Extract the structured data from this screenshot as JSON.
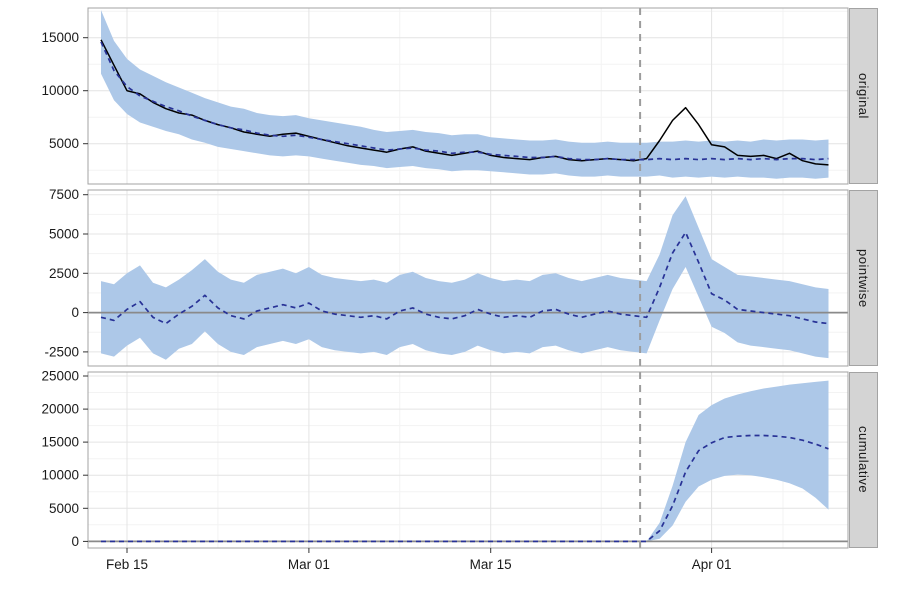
{
  "colors": {
    "band": "#ADC8E8",
    "prediction": "#283296",
    "actual": "#000000",
    "zero_line": "#8A8A8A",
    "vline": "#9C9C9C",
    "grid_major": "#E4E4E4",
    "grid_minor": "#F3F3F3",
    "panel_border": "#A3A3A3",
    "strip_bg": "#D4D4D4",
    "axis_text": "#1A1A1A"
  },
  "chart_data": {
    "type": "line",
    "subtype": "causal-impact-facets",
    "x_domain": [
      -1,
      57.5
    ],
    "x_ticks": [
      {
        "i": 2,
        "label": "Feb 15"
      },
      {
        "i": 16,
        "label": "Mar 01"
      },
      {
        "i": 30,
        "label": "Mar 15"
      },
      {
        "i": 47,
        "label": "Apr 01"
      }
    ],
    "x_minor": [
      9,
      23,
      38.5,
      52.5
    ],
    "intervention_x": 41.5,
    "panels": [
      {
        "name": "original",
        "ylim": [
          1200,
          17800
        ],
        "yticks": [
          5000,
          10000,
          15000
        ],
        "zero_line": false,
        "series": [
          {
            "name": "observed",
            "style": "solid-black",
            "values": [
              14800,
              12400,
              10000,
              9700,
              8900,
              8300,
              7900,
              7700,
              7200,
              6800,
              6500,
              6100,
              5900,
              5700,
              5900,
              6000,
              5700,
              5400,
              5100,
              4800,
              4600,
              4400,
              4200,
              4500,
              4700,
              4300,
              4100,
              3900,
              4100,
              4300,
              3900,
              3700,
              3600,
              3500,
              3700,
              3800,
              3500,
              3400,
              3500,
              3600,
              3500,
              3400,
              3600,
              5300,
              7200,
              8400,
              6800,
              4900,
              4700,
              3900,
              3800,
              3900,
              3600,
              4100,
              3400,
              3100,
              3000
            ]
          },
          {
            "name": "prediction",
            "style": "dashed-blue",
            "values": [
              14600,
              11900,
              10400,
              9500,
              9000,
              8500,
              8100,
              7600,
              7200,
              6800,
              6500,
              6300,
              6000,
              5800,
              5700,
              5800,
              5600,
              5400,
              5200,
              5000,
              4800,
              4600,
              4400,
              4500,
              4600,
              4400,
              4300,
              4100,
              4200,
              4200,
              4000,
              3900,
              3800,
              3700,
              3700,
              3800,
              3600,
              3500,
              3500,
              3600,
              3500,
              3500,
              3500,
              3600,
              3500,
              3600,
              3500,
              3600,
              3500,
              3600,
              3500,
              3600,
              3500,
              3600,
              3600,
              3500,
              3600
            ]
          }
        ],
        "band": {
          "lower": [
            11600,
            9100,
            7800,
            7000,
            6600,
            6200,
            5900,
            5400,
            5100,
            4700,
            4500,
            4300,
            4100,
            3900,
            3800,
            3900,
            3800,
            3600,
            3400,
            3200,
            3000,
            2900,
            2700,
            2800,
            2900,
            2700,
            2600,
            2400,
            2500,
            2500,
            2400,
            2300,
            2200,
            2100,
            2100,
            2200,
            2000,
            1900,
            1900,
            2000,
            1900,
            1900,
            1900,
            2000,
            1800,
            1900,
            1800,
            1900,
            1800,
            1900,
            1800,
            1800,
            1700,
            1800,
            1800,
            1700,
            1800
          ],
          "upper": [
            17600,
            14700,
            13000,
            12000,
            11400,
            10800,
            10300,
            9800,
            9300,
            8900,
            8500,
            8300,
            7900,
            7700,
            7600,
            7700,
            7400,
            7200,
            7000,
            6800,
            6600,
            6300,
            6100,
            6200,
            6300,
            6100,
            6000,
            5800,
            5900,
            5900,
            5600,
            5500,
            5400,
            5300,
            5300,
            5400,
            5200,
            5100,
            5100,
            5200,
            5100,
            5100,
            5100,
            5200,
            5200,
            5300,
            5200,
            5300,
            5200,
            5300,
            5200,
            5400,
            5300,
            5400,
            5400,
            5300,
            5400
          ]
        }
      },
      {
        "name": "pointwise",
        "ylim": [
          -3400,
          7800
        ],
        "yticks": [
          -2500,
          0,
          2500,
          5000,
          7500
        ],
        "zero_line": true,
        "series": [
          {
            "name": "pointwise-effect",
            "style": "dashed-blue",
            "values": [
              -300,
              -500,
              200,
              700,
              -300,
              -700,
              -100,
              400,
              1100,
              300,
              -200,
              -400,
              100,
              300,
              500,
              300,
              600,
              100,
              -100,
              -200,
              -300,
              -200,
              -400,
              100,
              300,
              -100,
              -300,
              -400,
              -200,
              200,
              -100,
              -300,
              -200,
              -300,
              100,
              200,
              -100,
              -300,
              -100,
              100,
              -100,
              -200,
              -300,
              1600,
              3800,
              5100,
              3200,
              1200,
              800,
              200,
              100,
              0,
              -100,
              -200,
              -400,
              -600,
              -700
            ]
          }
        ],
        "band": {
          "lower": [
            -2600,
            -2800,
            -2100,
            -1600,
            -2600,
            -3000,
            -2300,
            -2000,
            -1200,
            -2000,
            -2500,
            -2700,
            -2200,
            -2000,
            -1800,
            -2000,
            -1700,
            -2200,
            -2400,
            -2500,
            -2600,
            -2500,
            -2700,
            -2200,
            -2000,
            -2400,
            -2600,
            -2700,
            -2500,
            -2100,
            -2400,
            -2600,
            -2500,
            -2600,
            -2200,
            -2100,
            -2400,
            -2600,
            -2400,
            -2200,
            -2400,
            -2500,
            -2600,
            -500,
            1500,
            2900,
            1000,
            -900,
            -1300,
            -1900,
            -2100,
            -2200,
            -2300,
            -2400,
            -2600,
            -2800,
            -2900
          ],
          "upper": [
            2000,
            1800,
            2500,
            3000,
            1900,
            1600,
            2100,
            2700,
            3400,
            2600,
            2100,
            1900,
            2400,
            2600,
            2800,
            2500,
            2900,
            2400,
            2200,
            2100,
            2000,
            2100,
            1900,
            2400,
            2600,
            2200,
            2000,
            1900,
            2100,
            2500,
            2200,
            2000,
            2100,
            2000,
            2400,
            2500,
            2200,
            2000,
            2200,
            2400,
            2200,
            2100,
            2000,
            3700,
            6200,
            7400,
            5400,
            3400,
            2900,
            2400,
            2300,
            2200,
            2100,
            2000,
            1800,
            1600,
            1500
          ]
        }
      },
      {
        "name": "cumulative",
        "ylim": [
          -1000,
          25600
        ],
        "yticks": [
          0,
          5000,
          10000,
          15000,
          20000,
          25000
        ],
        "zero_line": true,
        "series": [
          {
            "name": "cumulative-effect",
            "style": "dashed-blue",
            "values": [
              0,
              0,
              0,
              0,
              0,
              0,
              0,
              0,
              0,
              0,
              0,
              0,
              0,
              0,
              0,
              0,
              0,
              0,
              0,
              0,
              0,
              0,
              0,
              0,
              0,
              0,
              0,
              0,
              0,
              0,
              0,
              0,
              0,
              0,
              0,
              0,
              0,
              0,
              0,
              0,
              0,
              0,
              0,
              1600,
              5400,
              10500,
              13700,
              14900,
              15700,
              15900,
              16000,
              16000,
              15900,
              15700,
              15300,
              14700,
              14000
            ]
          }
        ],
        "band": {
          "lower": [
            0,
            0,
            0,
            0,
            0,
            0,
            0,
            0,
            0,
            0,
            0,
            0,
            0,
            0,
            0,
            0,
            0,
            0,
            0,
            0,
            0,
            0,
            0,
            0,
            0,
            0,
            0,
            0,
            0,
            0,
            0,
            0,
            0,
            0,
            0,
            0,
            0,
            0,
            0,
            0,
            0,
            0,
            0,
            400,
            2400,
            6000,
            8300,
            9300,
            9900,
            10100,
            10000,
            9700,
            9300,
            8800,
            8000,
            6600,
            4800
          ],
          "upper": [
            0,
            0,
            0,
            0,
            0,
            0,
            0,
            0,
            0,
            0,
            0,
            0,
            0,
            0,
            0,
            0,
            0,
            0,
            0,
            0,
            0,
            0,
            0,
            0,
            0,
            0,
            0,
            0,
            0,
            0,
            0,
            0,
            0,
            0,
            0,
            0,
            0,
            0,
            0,
            0,
            0,
            0,
            0,
            2800,
            8400,
            15000,
            19100,
            20600,
            21600,
            22200,
            22700,
            23100,
            23400,
            23700,
            23900,
            24100,
            24300
          ]
        }
      }
    ]
  }
}
